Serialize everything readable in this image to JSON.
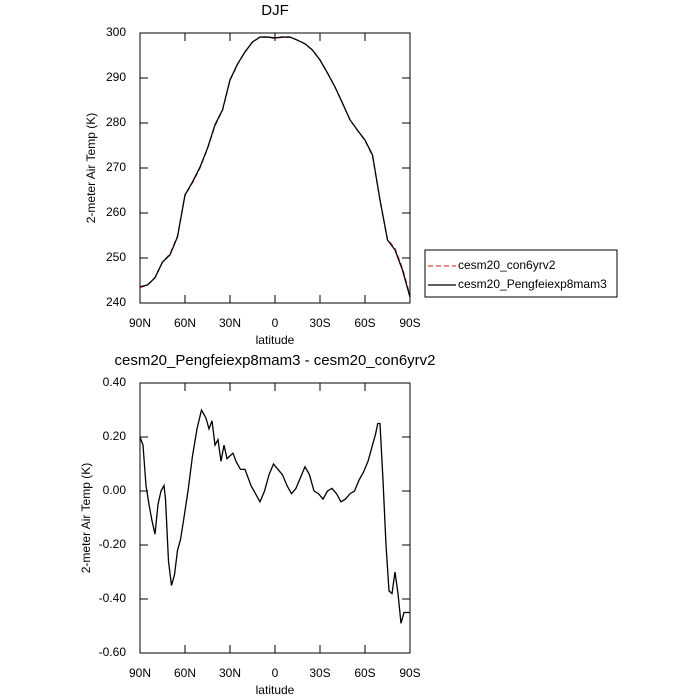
{
  "chart_data": [
    {
      "type": "line",
      "title": "DJF",
      "x_label": "latitude",
      "y_label": "2-meter Air Temp (K)",
      "x": [
        90,
        85,
        80,
        75,
        70,
        65,
        60,
        55,
        50,
        45,
        40,
        35,
        30,
        25,
        20,
        15,
        10,
        5,
        0,
        -5,
        -10,
        -15,
        -20,
        -25,
        -30,
        -35,
        -40,
        -45,
        -50,
        -55,
        -60,
        -65,
        -70,
        -75,
        -80,
        -85,
        -90
      ],
      "series": [
        {
          "name": "cesm20_con6yrv2",
          "color": "#e8413c",
          "dash": true,
          "values": [
            243.4,
            244.0,
            245.7,
            249.1,
            250.9,
            254.9,
            264.0,
            266.7,
            270.0,
            274.3,
            279.4,
            282.8,
            289.5,
            293.0,
            295.8,
            298.0,
            299.1,
            299.1,
            298.8,
            299.1,
            299.1,
            298.4,
            297.6,
            296.2,
            294.0,
            291.1,
            288.0,
            284.4,
            280.7,
            278.4,
            276.1,
            272.7,
            262.8,
            254.2,
            252.1,
            247.7,
            241.7
          ]
        },
        {
          "name": "cesm20_Pengfeiexp8mam3",
          "color": "#000000",
          "dash": false,
          "values": [
            243.6,
            244.0,
            245.6,
            249.1,
            250.7,
            254.7,
            264.0,
            266.9,
            270.2,
            274.4,
            279.6,
            282.9,
            289.6,
            293.1,
            295.8,
            298.0,
            299.1,
            299.1,
            298.9,
            299.1,
            299.1,
            298.4,
            297.6,
            296.2,
            294.0,
            291.1,
            288.0,
            284.4,
            280.7,
            278.4,
            276.2,
            272.9,
            262.9,
            254.0,
            251.8,
            247.3,
            241.3
          ]
        }
      ],
      "xlim": [
        90,
        -90
      ],
      "xticks": [
        {
          "value": 90,
          "label": "90N"
        },
        {
          "value": 60,
          "label": "60N"
        },
        {
          "value": 30,
          "label": "30N"
        },
        0,
        {
          "value": -30,
          "label": "30S"
        },
        {
          "value": -60,
          "label": "60S"
        },
        {
          "value": -90,
          "label": "90S"
        }
      ],
      "ylim": [
        240,
        300
      ],
      "yticks": [
        240,
        250,
        260,
        270,
        280,
        290,
        300
      ],
      "legend": "outside-right"
    },
    {
      "type": "line",
      "title": "cesm20_Pengfeiexp8mam3 - cesm20_con6yrv2",
      "x_label": "latitude",
      "y_label": "2-meter Air Temp (K)",
      "x": [
        90,
        88,
        86,
        84,
        82,
        80,
        78,
        76,
        74,
        73,
        71,
        69,
        67,
        65,
        63,
        61,
        58,
        55,
        52,
        49,
        46,
        44,
        42,
        40,
        38,
        36,
        34,
        32,
        30,
        28,
        26,
        23,
        20,
        16,
        13,
        10,
        7,
        4,
        1,
        -2,
        -5,
        -8,
        -11,
        -14,
        -17,
        -20,
        -23,
        -26,
        -29,
        -32,
        -35,
        -38,
        -41,
        -44,
        -47,
        -50,
        -53,
        -56,
        -59,
        -62,
        -65,
        -67,
        -68.5,
        -70,
        -72,
        -74,
        -76,
        -78,
        -80,
        -82,
        -84,
        -86,
        -88,
        -90
      ],
      "series": [
        {
          "color": "#000000",
          "values": [
            0.2,
            0.17,
            0.02,
            -0.05,
            -0.11,
            -0.16,
            -0.05,
            0.0,
            0.02,
            -0.03,
            -0.26,
            -0.35,
            -0.31,
            -0.22,
            -0.18,
            -0.11,
            0.0,
            0.13,
            0.23,
            0.3,
            0.27,
            0.23,
            0.26,
            0.17,
            0.19,
            0.11,
            0.17,
            0.12,
            0.13,
            0.14,
            0.11,
            0.08,
            0.08,
            0.02,
            -0.01,
            -0.04,
            0.0,
            0.06,
            0.1,
            0.08,
            0.06,
            0.02,
            -0.01,
            0.01,
            0.05,
            0.09,
            0.06,
            0.0,
            -0.01,
            -0.03,
            0.0,
            0.01,
            -0.01,
            -0.04,
            -0.03,
            -0.01,
            0.0,
            0.04,
            0.07,
            0.11,
            0.17,
            0.21,
            0.25,
            0.25,
            0.04,
            -0.2,
            -0.37,
            -0.38,
            -0.3,
            -0.38,
            -0.49,
            -0.45,
            -0.45,
            -0.45
          ]
        }
      ],
      "xlim": [
        90,
        -90
      ],
      "xticks": [
        {
          "value": 90,
          "label": "90N"
        },
        {
          "value": 60,
          "label": "60N"
        },
        {
          "value": 30,
          "label": "30N"
        },
        0,
        {
          "value": -30,
          "label": "30S"
        },
        {
          "value": -60,
          "label": "60S"
        },
        {
          "value": -90,
          "label": "90S"
        }
      ],
      "ylim": [
        -0.6,
        0.4
      ],
      "yticks": [
        {
          "value": -0.6,
          "label": "-0.60"
        },
        {
          "value": -0.4,
          "label": "-0.40"
        },
        {
          "value": -0.2,
          "label": "-0.20"
        },
        {
          "value": 0,
          "label": "0.00"
        },
        {
          "value": 0.2,
          "label": "0.20"
        },
        {
          "value": 0.4,
          "label": "0.40"
        }
      ]
    }
  ]
}
